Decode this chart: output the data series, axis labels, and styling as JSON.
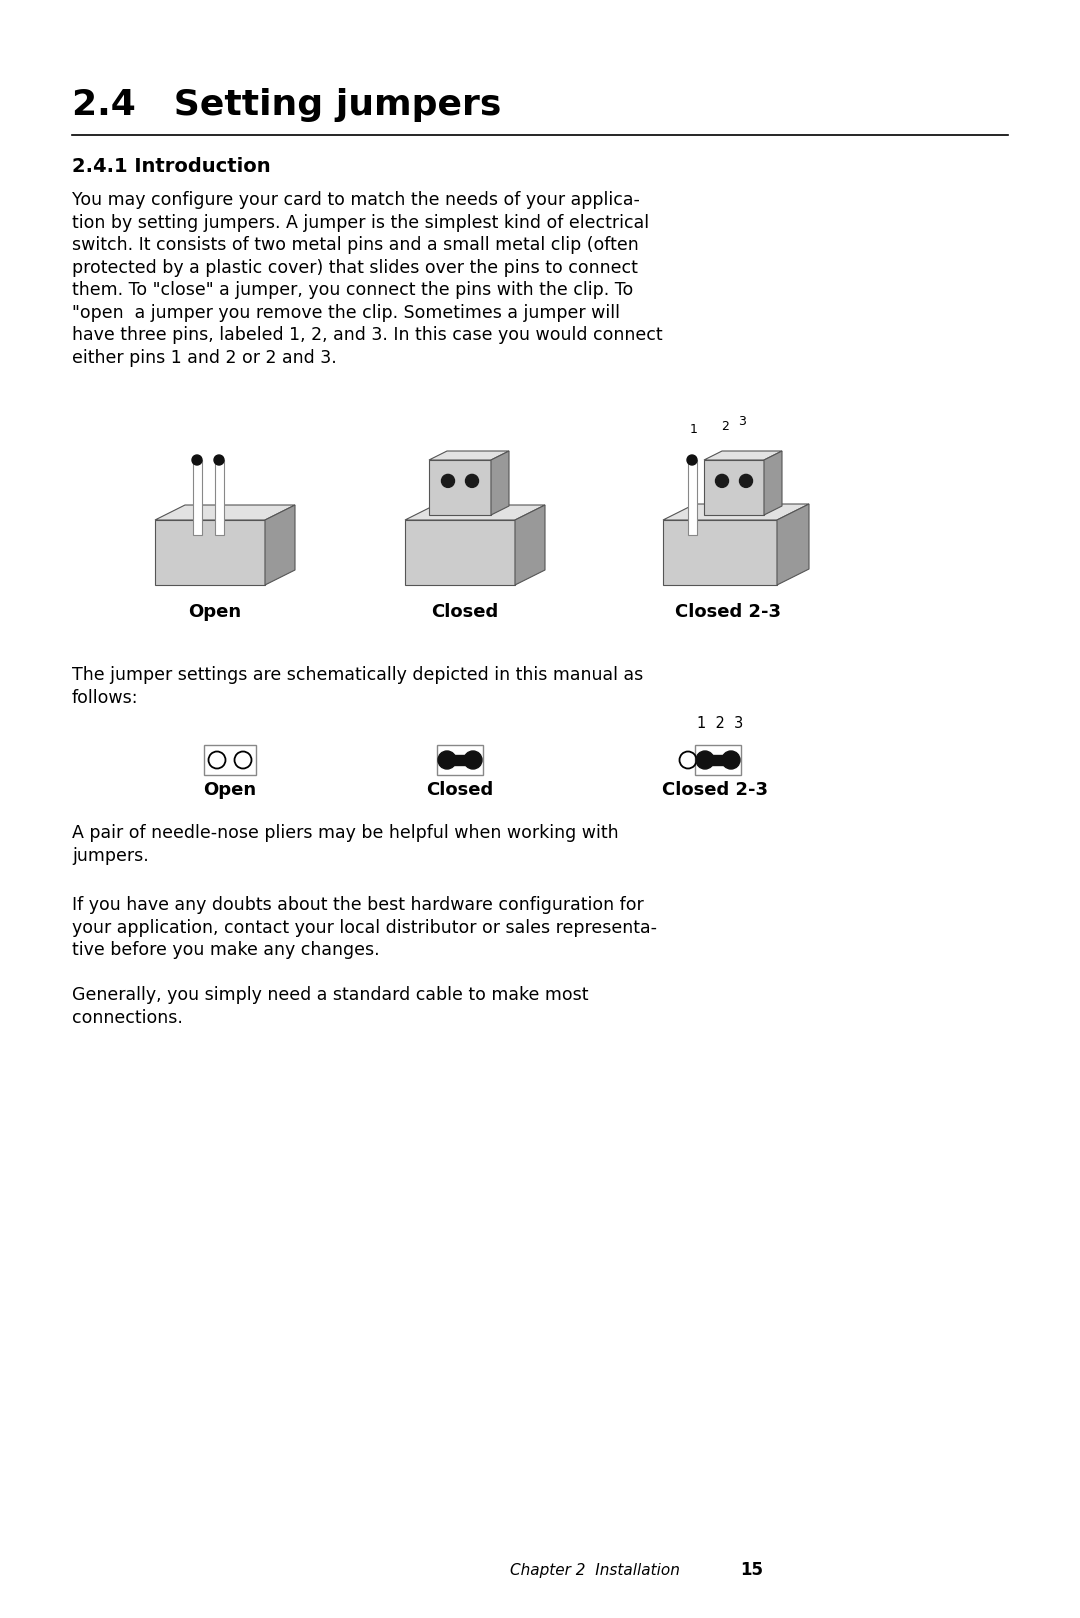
{
  "title": "2.4   Setting jumpers",
  "subtitle": "2.4.1 Introduction",
  "body1_lines": [
    "You may configure your card to match the needs of your applica-",
    "tion by setting jumpers. A jumper is the simplest kind of electrical",
    "switch. It consists of two metal pins and a small metal clip (often",
    "protected by a plastic cover) that slides over the pins to connect",
    "them. To \"close\" a jumper, you connect the pins with the clip. To",
    "\"open  a jumper you remove the clip. Sometimes a jumper will",
    "have three pins, labeled 1, 2, and 3. In this case you would connect",
    "either pins 1 and 2 or 2 and 3."
  ],
  "label_open": "Open",
  "label_closed": "Closed",
  "label_closed23": "Closed 2-3",
  "schematic_intro": "The jumper settings are schematically depicted in this manual as",
  "schematic_intro2": "follows:",
  "needle_text1": "A pair of needle-nose pliers may be helpful when working with",
  "needle_text2": "jumpers.",
  "doubts_lines": [
    "If you have any doubts about the best hardware configuration for",
    "your application, contact your local distributor or sales representa-",
    "tive before you make any changes."
  ],
  "generally_lines": [
    "Generally, you simply need a standard cable to make most",
    "connections."
  ],
  "footer_text": "Chapter 2  Installation",
  "footer_page": "15",
  "bg_color": "#ffffff",
  "text_color": "#000000",
  "gray_light": "#cccccc",
  "gray_mid": "#999999",
  "gray_dark": "#555555",
  "gray_top": "#e2e2e2"
}
